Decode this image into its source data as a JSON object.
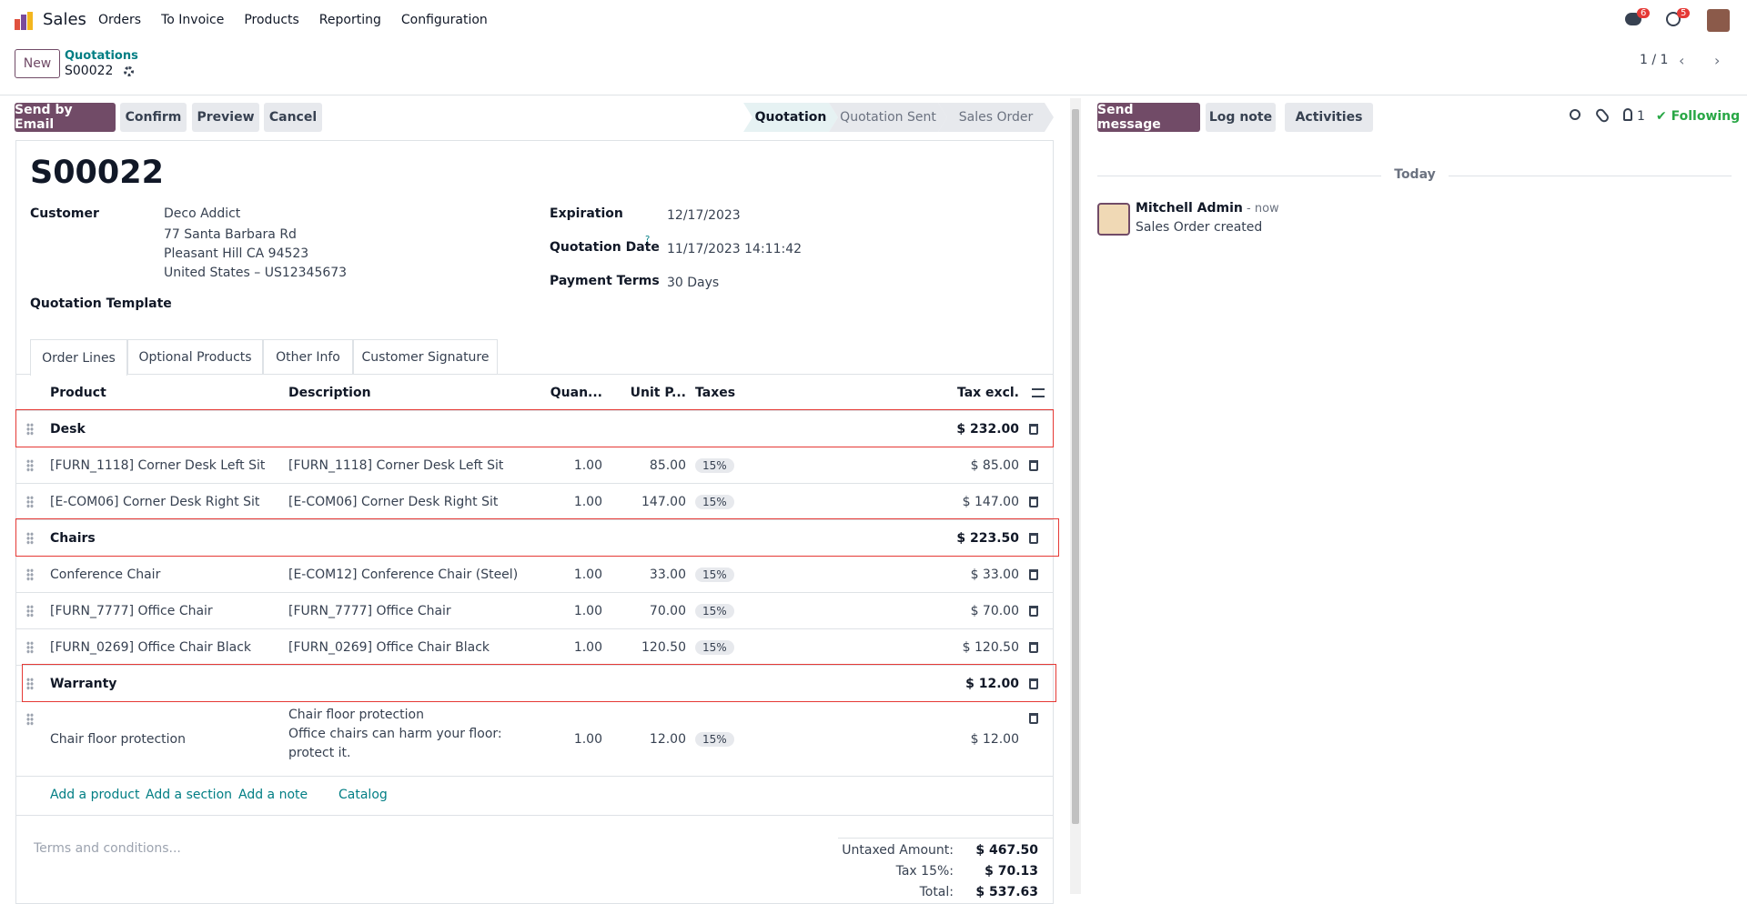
{
  "navbar": {
    "app": "Sales",
    "menu": [
      "Orders",
      "To Invoice",
      "Products",
      "Reporting",
      "Configuration"
    ],
    "badges": [
      "6",
      "5"
    ]
  },
  "control_panel": {
    "new": "New",
    "breadcrumb": "Quotations",
    "current": "S00022",
    "pager": "1 / 1"
  },
  "actions": [
    "Send by Email",
    "Confirm",
    "Preview",
    "Cancel"
  ],
  "statusbar": [
    "Quotation",
    "Quotation Sent",
    "Sales Order"
  ],
  "form": {
    "title": "S00022",
    "customer": {
      "label": "Customer",
      "lines": [
        "Deco Addict",
        "77 Santa Barbara Rd",
        "Pleasant Hill CA 94523",
        "United States – US12345673"
      ]
    },
    "quotation_template": "Quotation Template",
    "fields": [
      {
        "label": "Expiration",
        "value": "12/17/2023"
      },
      {
        "label": "Quotation Date",
        "help": "?",
        "value": "11/17/2023 14:11:42"
      },
      {
        "label": "Payment Terms",
        "value": "30 Days"
      }
    ]
  },
  "tabs": [
    "Order Lines",
    "Optional Products",
    "Other Info",
    "Customer Signature"
  ],
  "table": {
    "headers": [
      "Product",
      "Description",
      "Quan...",
      "Unit P...",
      "Taxes",
      "Tax excl."
    ],
    "rows": [
      {
        "section": "Desk",
        "subtotal": "$ 232.00"
      },
      {
        "product": "[FURN_1118] Corner Desk Left Sit",
        "description": "[FURN_1118] Corner Desk Left Sit",
        "quantity": "1.00",
        "price": "85.00",
        "tax": "15%",
        "subtotal": "$ 85.00"
      },
      {
        "product": "[E-COM06] Corner Desk Right Sit",
        "description": "[E-COM06] Corner Desk Right Sit",
        "quantity": "1.00",
        "price": "147.00",
        "tax": "15%",
        "subtotal": "$ 147.00"
      },
      {
        "section": "Chairs",
        "subtotal": "$ 223.50"
      },
      {
        "product": "Conference Chair",
        "description": "[E-COM12] Conference Chair (Steel)",
        "quantity": "1.00",
        "price": "33.00",
        "tax": "15%",
        "subtotal": "$ 33.00"
      },
      {
        "product": "[FURN_7777] Office Chair",
        "description": "[FURN_7777] Office Chair",
        "quantity": "1.00",
        "price": "70.00",
        "tax": "15%",
        "subtotal": "$ 70.00"
      },
      {
        "product": "[FURN_0269] Office Chair Black",
        "description": "[FURN_0269] Office Chair Black",
        "quantity": "1.00",
        "price": "120.50",
        "tax": "15%",
        "subtotal": "$ 120.50"
      },
      {
        "section": "Warranty",
        "subtotal": "$ 12.00"
      },
      {
        "product": "Chair floor protection",
        "description": "Chair floor protection\nOffice chairs can harm your floor: protect it.",
        "quantity": "1.00",
        "price": "12.00",
        "tax": "15%",
        "subtotal": "$ 12.00"
      }
    ],
    "add_links": [
      "Add a product",
      "Add a section",
      "Add a note",
      "Catalog"
    ]
  },
  "terms": "Terms and conditions...",
  "totals": [
    {
      "label": "Untaxed Amount:",
      "value": "$ 467.50"
    },
    {
      "label": "Tax 15%:",
      "value": "$ 70.13"
    },
    {
      "label": "Total:",
      "value": "$ 537.63"
    }
  ],
  "chatter": {
    "buttons": [
      "Send message",
      "Log note",
      "Activities"
    ],
    "followers": "1",
    "following": "Following",
    "date": "Today",
    "message": {
      "author": "Mitchell Admin",
      "time": "- now",
      "body": "Sales Order created"
    }
  }
}
